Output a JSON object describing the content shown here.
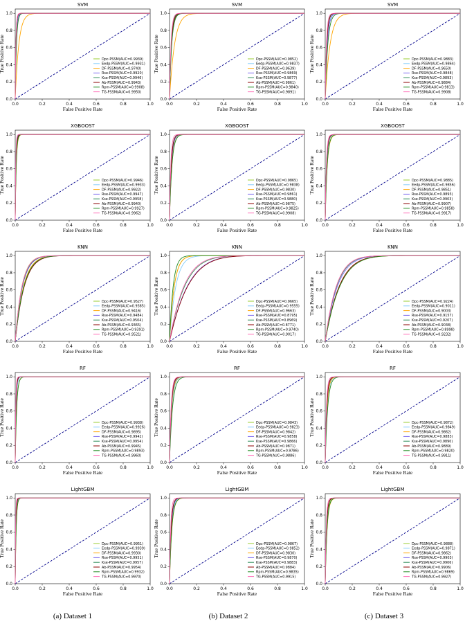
{
  "legend_prefixes": [
    "Dpc-PSSM",
    "Eedp-PSSM",
    "DF-PSSM",
    "Rse-PSSM",
    "Kse-PSSM",
    "Ab-PSSM",
    "Rpm-PSSM",
    "TG-PSSM"
  ],
  "series_colors": [
    "#9acd32",
    "#87cefa",
    "#ffa500",
    "#7b68ee",
    "#2e8b57",
    "#8b0000",
    "#228b22",
    "#ff69b4"
  ],
  "diagonal_color": "#00008b",
  "captions": [
    "(a)  Dataset 1",
    "(b)  Dataset 2",
    "(c)  Dataset 3"
  ],
  "chart_data": [
    {
      "type": "line",
      "title": "SVM",
      "xlabel": "False Positive Rate",
      "ylabel": "True Positive Rate",
      "xlim": [
        0,
        1
      ],
      "ylim": [
        0,
        1.05
      ],
      "xticks": [
        "0.0",
        "0.2",
        "0.4",
        "0.6",
        "0.8",
        "1.0"
      ],
      "yticks": [
        "0.0",
        "0.2",
        "0.4",
        "0.6",
        "0.8",
        "1.0"
      ],
      "legend": "lower-right",
      "auc": [
        "0.9939",
        "0.9931",
        "0.9740",
        "0.9920",
        "0.9946",
        "0.9943",
        "0.9908",
        "0.9950"
      ]
    },
    {
      "type": "line",
      "title": "SVM",
      "xlabel": "False Positive Rate",
      "ylabel": "True Positive Rate",
      "xlim": [
        0,
        1
      ],
      "ylim": [
        0,
        1.05
      ],
      "xticks": [
        "0.0",
        "0.2",
        "0.4",
        "0.6",
        "0.8",
        "1.0"
      ],
      "yticks": [
        "0.0",
        "0.2",
        "0.4",
        "0.6",
        "0.8",
        "1.0"
      ],
      "legend": "lower-right",
      "auc": [
        "0.9852",
        "0.9837",
        "0.9639",
        "0.9869",
        "0.9877",
        "0.9861",
        "0.9840",
        "0.9891"
      ]
    },
    {
      "type": "line",
      "title": "SVM",
      "xlabel": "False Positive Rate",
      "ylabel": "True Positive Rate",
      "xlim": [
        0,
        1
      ],
      "ylim": [
        0,
        1.05
      ],
      "xticks": [
        "0.0",
        "0.2",
        "0.4",
        "0.6",
        "0.8",
        "1.0"
      ],
      "yticks": [
        "0.0",
        "0.2",
        "0.4",
        "0.6",
        "0.8",
        "1.0"
      ],
      "legend": "lower-right",
      "auc": [
        "0.9883",
        "0.9864",
        "0.9650",
        "0.9848",
        "0.9893",
        "0.9884",
        "0.9813",
        "0.9908"
      ]
    },
    {
      "type": "line",
      "title": "XGBOOST",
      "xlabel": "False Positive Rate",
      "ylabel": "True Positive Rate",
      "xlim": [
        0,
        1
      ],
      "ylim": [
        0,
        1.05
      ],
      "xticks": [
        "0.0",
        "0.2",
        "0.4",
        "0.6",
        "0.8",
        "1.0"
      ],
      "yticks": [
        "0.0",
        "0.2",
        "0.4",
        "0.6",
        "0.8",
        "1.0"
      ],
      "legend": "lower-right",
      "auc": [
        "0.9946",
        "0.9933",
        "0.9922",
        "0.9947",
        "0.9958",
        "0.9940",
        "0.9927",
        "0.9962"
      ]
    },
    {
      "type": "line",
      "title": "XGBOOST",
      "xlabel": "False Positive Rate",
      "ylabel": "True Positive Rate",
      "xlim": [
        0,
        1
      ],
      "ylim": [
        0,
        1.05
      ],
      "xticks": [
        "0.0",
        "0.2",
        "0.4",
        "0.6",
        "0.8",
        "1.0"
      ],
      "yticks": [
        "0.0",
        "0.2",
        "0.4",
        "0.6",
        "0.8",
        "1.0"
      ],
      "legend": "lower-right",
      "auc": [
        "0.9865",
        "0.9838",
        "0.9830",
        "0.9861",
        "0.9880",
        "0.9875",
        "0.9825",
        "0.9908"
      ]
    },
    {
      "type": "line",
      "title": "XGBOOST",
      "xlabel": "False Positive Rate",
      "ylabel": "True Positive Rate",
      "xlim": [
        0,
        1
      ],
      "ylim": [
        0,
        1.05
      ],
      "xticks": [
        "0.0",
        "0.2",
        "0.4",
        "0.6",
        "0.8",
        "1.0"
      ],
      "yticks": [
        "0.0",
        "0.2",
        "0.4",
        "0.6",
        "0.8",
        "1.0"
      ],
      "legend": "lower-right",
      "auc": [
        "0.9885",
        "0.9856",
        "0.9851",
        "0.9893",
        "0.9903",
        "0.9907",
        "0.9858",
        "0.9917"
      ]
    },
    {
      "type": "line",
      "title": "KNN",
      "xlabel": "False Positive Rate",
      "ylabel": "True Positive Rate",
      "xlim": [
        0,
        1
      ],
      "ylim": [
        0,
        1.05
      ],
      "xticks": [
        "0.0",
        "0.2",
        "0.4",
        "0.6",
        "0.8",
        "1.0"
      ],
      "yticks": [
        "0.0",
        "0.2",
        "0.4",
        "0.6",
        "0.8",
        "1.0"
      ],
      "legend": "lower-right",
      "auc": [
        "0.9527",
        "0.9385",
        "0.9416",
        "0.9484",
        "0.9504",
        "0.9365",
        "0.9391",
        "0.9521"
      ]
    },
    {
      "type": "line",
      "title": "KNN",
      "xlabel": "False Positive Rate",
      "ylabel": "True Positive Rate",
      "xlim": [
        0,
        1
      ],
      "ylim": [
        0,
        1.05
      ],
      "xticks": [
        "0.0",
        "0.2",
        "0.4",
        "0.6",
        "0.8",
        "1.0"
      ],
      "yticks": [
        "0.0",
        "0.2",
        "0.4",
        "0.6",
        "0.8",
        "1.0"
      ],
      "legend": "lower-right",
      "auc": [
        "0.9665",
        "0.9555",
        "0.9663",
        "0.8795",
        "0.8969",
        "0.8771",
        "0.9740",
        "0.9017"
      ]
    },
    {
      "type": "line",
      "title": "KNN",
      "xlabel": "False Positive Rate",
      "ylabel": "True Positive Rate",
      "xlim": [
        0,
        1
      ],
      "ylim": [
        0,
        1.05
      ],
      "xticks": [
        "0.0",
        "0.2",
        "0.4",
        "0.6",
        "0.8",
        "1.0"
      ],
      "yticks": [
        "0.0",
        "0.2",
        "0.4",
        "0.6",
        "0.8",
        "1.0"
      ],
      "legend": "lower-right",
      "auc": [
        "0.9224",
        "0.9011",
        "0.9003",
        "0.9157",
        "0.9207",
        "0.9038",
        "0.8998",
        "0.9232"
      ]
    },
    {
      "type": "line",
      "title": "RF",
      "xlabel": "False Positive Rate",
      "ylabel": "True Positive Rate",
      "xlim": [
        0,
        1
      ],
      "ylim": [
        0,
        1.05
      ],
      "xticks": [
        "0.0",
        "0.2",
        "0.4",
        "0.6",
        "0.8",
        "1.0"
      ],
      "yticks": [
        "0.0",
        "0.2",
        "0.4",
        "0.6",
        "0.8",
        "1.0"
      ],
      "legend": "lower-right",
      "auc": [
        "0.9938",
        "0.9926",
        "0.9895",
        "0.9942",
        "0.9954",
        "0.9945",
        "0.9893",
        "0.9960"
      ]
    },
    {
      "type": "line",
      "title": "RF",
      "xlabel": "False Positive Rate",
      "ylabel": "True Positive Rate",
      "xlim": [
        0,
        1
      ],
      "ylim": [
        0,
        1.05
      ],
      "xticks": [
        "0.0",
        "0.2",
        "0.4",
        "0.6",
        "0.8",
        "1.0"
      ],
      "yticks": [
        "0.0",
        "0.2",
        "0.4",
        "0.6",
        "0.8",
        "1.0"
      ],
      "legend": "lower-right",
      "auc": [
        "0.9843",
        "0.9823",
        "0.9842",
        "0.9858",
        "0.9866",
        "0.9871",
        "0.9786",
        "0.9886"
      ]
    },
    {
      "type": "line",
      "title": "RF",
      "xlabel": "False Positive Rate",
      "ylabel": "True Positive Rate",
      "xlim": [
        0,
        1
      ],
      "ylim": [
        0,
        1.05
      ],
      "xticks": [
        "0.0",
        "0.2",
        "0.4",
        "0.6",
        "0.8",
        "1.0"
      ],
      "yticks": [
        "0.0",
        "0.2",
        "0.4",
        "0.6",
        "0.8",
        "1.0"
      ],
      "legend": "lower-right",
      "auc": [
        "0.9872",
        "0.9849",
        "0.9862",
        "0.9883",
        "0.9890",
        "0.9889",
        "0.9820",
        "0.9911"
      ]
    },
    {
      "type": "line",
      "title": "LightGBM",
      "xlabel": "False Positive Rate",
      "ylabel": "True Positive Rate",
      "xlim": [
        0,
        1
      ],
      "ylim": [
        0,
        1.05
      ],
      "xticks": [
        "0.0",
        "0.2",
        "0.4",
        "0.6",
        "0.8",
        "1.0"
      ],
      "yticks": [
        "0.0",
        "0.2",
        "0.4",
        "0.6",
        "0.8",
        "1.0"
      ],
      "legend": "lower-right",
      "auc": [
        "0.9951",
        "0.9939",
        "0.9930",
        "0.9951",
        "0.9957",
        "0.9954",
        "0.9932",
        "0.9970"
      ]
    },
    {
      "type": "line",
      "title": "LightGBM",
      "xlabel": "False Positive Rate",
      "ylabel": "True Positive Rate",
      "xlim": [
        0,
        1
      ],
      "ylim": [
        0,
        1.05
      ],
      "xticks": [
        "0.0",
        "0.2",
        "0.4",
        "0.6",
        "0.8",
        "1.0"
      ],
      "yticks": [
        "0.0",
        "0.2",
        "0.4",
        "0.6",
        "0.8",
        "1.0"
      ],
      "legend": "lower-right",
      "auc": [
        "0.9867",
        "0.9852",
        "0.9830",
        "0.9870",
        "0.9883",
        "0.9884",
        "0.9835",
        "0.9915"
      ]
    },
    {
      "type": "line",
      "title": "LightGBM",
      "xlabel": "False Positive Rate",
      "ylabel": "True Positive Rate",
      "xlim": [
        0,
        1
      ],
      "ylim": [
        0,
        1.05
      ],
      "xticks": [
        "0.0",
        "0.2",
        "0.4",
        "0.6",
        "0.8",
        "1.0"
      ],
      "yticks": [
        "0.0",
        "0.2",
        "0.4",
        "0.6",
        "0.8",
        "1.0"
      ],
      "legend": "lower-right",
      "auc": [
        "0.9888",
        "0.9871",
        "0.9862",
        "0.9903",
        "0.9906",
        "0.9906",
        "0.9869",
        "0.9927"
      ]
    }
  ]
}
